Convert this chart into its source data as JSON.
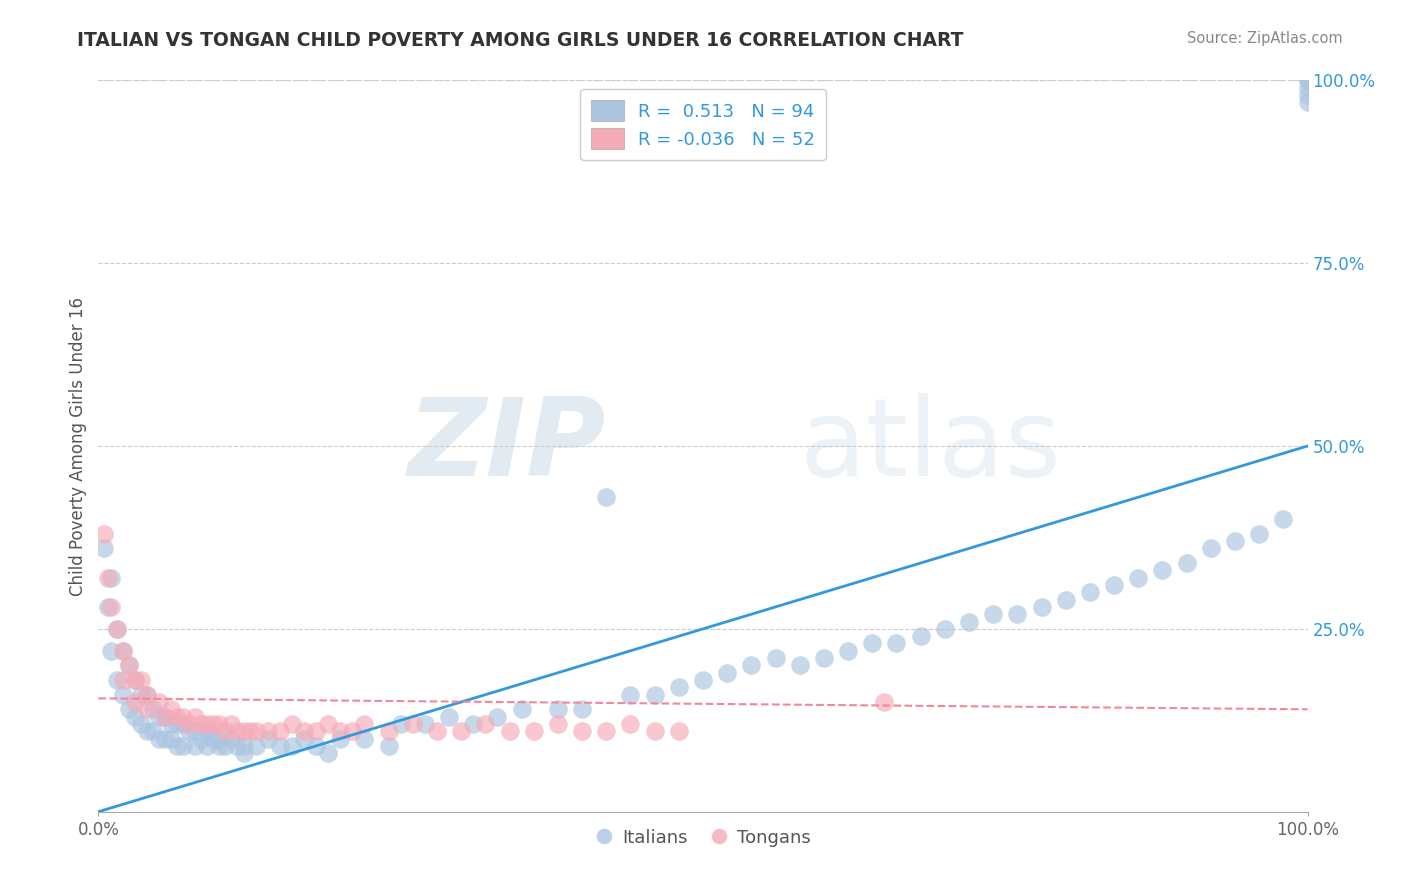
{
  "title": "ITALIAN VS TONGAN CHILD POVERTY AMONG GIRLS UNDER 16 CORRELATION CHART",
  "source_text": "Source: ZipAtlas.com",
  "ylabel": "Child Poverty Among Girls Under 16",
  "watermark_zip": "ZIP",
  "watermark_atlas": "atlas",
  "legend_italian": "Italians",
  "legend_tongan": "Tongans",
  "r_italian": 0.513,
  "n_italian": 94,
  "r_tongan": -0.036,
  "n_tongan": 52,
  "italian_color": "#aac4e0",
  "tongan_color": "#f5aab8",
  "italian_line_color": "#3399dd",
  "tongan_line_color": "#f08898",
  "background_color": "#ffffff",
  "xlim": [
    0,
    1
  ],
  "ylim": [
    0,
    1
  ],
  "italian_line_x0": 0.0,
  "italian_line_y0": 0.0,
  "italian_line_x1": 1.0,
  "italian_line_y1": 0.5,
  "tongan_line_x0": 0.0,
  "tongan_line_y0": 0.155,
  "tongan_line_x1": 1.0,
  "tongan_line_y1": 0.14,
  "italian_scatter_x": [
    0.005,
    0.008,
    0.01,
    0.01,
    0.015,
    0.015,
    0.02,
    0.02,
    0.025,
    0.025,
    0.03,
    0.03,
    0.035,
    0.035,
    0.04,
    0.04,
    0.045,
    0.045,
    0.05,
    0.05,
    0.055,
    0.055,
    0.06,
    0.06,
    0.065,
    0.065,
    0.07,
    0.07,
    0.075,
    0.08,
    0.08,
    0.085,
    0.09,
    0.09,
    0.095,
    0.1,
    0.1,
    0.105,
    0.11,
    0.115,
    0.12,
    0.12,
    0.13,
    0.14,
    0.15,
    0.16,
    0.17,
    0.18,
    0.19,
    0.2,
    0.22,
    0.24,
    0.25,
    0.27,
    0.29,
    0.31,
    0.33,
    0.35,
    0.38,
    0.4,
    0.42,
    0.44,
    0.46,
    0.48,
    0.5,
    0.52,
    0.54,
    0.56,
    0.58,
    0.6,
    0.62,
    0.64,
    0.66,
    0.68,
    0.7,
    0.72,
    0.74,
    0.76,
    0.78,
    0.8,
    0.82,
    0.84,
    0.86,
    0.88,
    0.9,
    0.92,
    0.94,
    0.96,
    0.98,
    1.0,
    1.0,
    1.0,
    1.0,
    1.0
  ],
  "italian_scatter_y": [
    0.36,
    0.28,
    0.32,
    0.22,
    0.25,
    0.18,
    0.22,
    0.16,
    0.2,
    0.14,
    0.18,
    0.13,
    0.16,
    0.12,
    0.16,
    0.11,
    0.14,
    0.11,
    0.13,
    0.1,
    0.13,
    0.1,
    0.12,
    0.1,
    0.12,
    0.09,
    0.12,
    0.09,
    0.11,
    0.11,
    0.09,
    0.1,
    0.11,
    0.09,
    0.1,
    0.1,
    0.09,
    0.09,
    0.1,
    0.09,
    0.09,
    0.08,
    0.09,
    0.1,
    0.09,
    0.09,
    0.1,
    0.09,
    0.08,
    0.1,
    0.1,
    0.09,
    0.12,
    0.12,
    0.13,
    0.12,
    0.13,
    0.14,
    0.14,
    0.14,
    0.43,
    0.16,
    0.16,
    0.17,
    0.18,
    0.19,
    0.2,
    0.21,
    0.2,
    0.21,
    0.22,
    0.23,
    0.23,
    0.24,
    0.25,
    0.26,
    0.27,
    0.27,
    0.28,
    0.29,
    0.3,
    0.31,
    0.32,
    0.33,
    0.34,
    0.36,
    0.37,
    0.38,
    0.4,
    0.97,
    0.98,
    0.99,
    1.0,
    1.0
  ],
  "tongan_scatter_x": [
    0.005,
    0.008,
    0.01,
    0.015,
    0.02,
    0.02,
    0.025,
    0.03,
    0.03,
    0.035,
    0.04,
    0.04,
    0.05,
    0.055,
    0.06,
    0.065,
    0.07,
    0.075,
    0.08,
    0.085,
    0.09,
    0.095,
    0.1,
    0.105,
    0.11,
    0.115,
    0.12,
    0.125,
    0.13,
    0.14,
    0.15,
    0.16,
    0.17,
    0.18,
    0.19,
    0.2,
    0.21,
    0.22,
    0.24,
    0.26,
    0.28,
    0.3,
    0.32,
    0.34,
    0.36,
    0.38,
    0.4,
    0.42,
    0.44,
    0.46,
    0.48,
    0.65
  ],
  "tongan_scatter_y": [
    0.38,
    0.32,
    0.28,
    0.25,
    0.22,
    0.18,
    0.2,
    0.18,
    0.15,
    0.18,
    0.16,
    0.14,
    0.15,
    0.13,
    0.14,
    0.13,
    0.13,
    0.12,
    0.13,
    0.12,
    0.12,
    0.12,
    0.12,
    0.11,
    0.12,
    0.11,
    0.11,
    0.11,
    0.11,
    0.11,
    0.11,
    0.12,
    0.11,
    0.11,
    0.12,
    0.11,
    0.11,
    0.12,
    0.11,
    0.12,
    0.11,
    0.11,
    0.12,
    0.11,
    0.11,
    0.12,
    0.11,
    0.11,
    0.12,
    0.11,
    0.11,
    0.15
  ]
}
